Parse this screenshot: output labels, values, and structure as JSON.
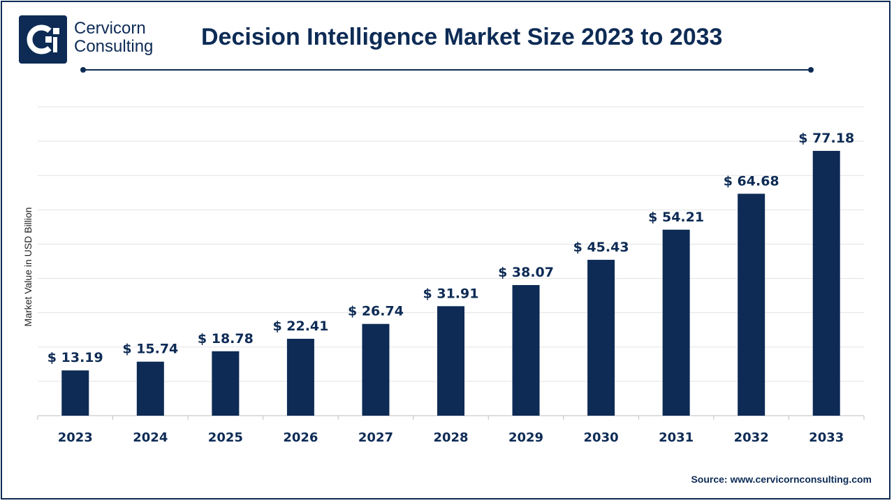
{
  "brand": {
    "line1": "Cervicorn",
    "line2": "Consulting",
    "color": "#0d2b55",
    "icon": "cervicorn-logo-icon"
  },
  "source": "Source: www.cervicornconsulting.com",
  "chart_data": {
    "type": "bar",
    "title": "Decision Intelligence Market Size 2023 to 2033",
    "xlabel": "",
    "ylabel": "Market Value in USD Billion",
    "categories": [
      "2023",
      "2024",
      "2025",
      "2026",
      "2027",
      "2028",
      "2029",
      "2030",
      "2031",
      "2032",
      "2033"
    ],
    "values": [
      13.19,
      15.74,
      18.78,
      22.41,
      26.74,
      31.91,
      38.07,
      45.43,
      54.21,
      64.68,
      77.18
    ],
    "value_labels": [
      "$ 13.19",
      "$ 15.74",
      "$ 18.78",
      "$ 22.41",
      "$ 26.74",
      "$ 31.91",
      "$ 38.07",
      "$ 45.43",
      "$ 54.21",
      "$ 64.68",
      "$ 77.18"
    ],
    "ylim": [
      0,
      90
    ],
    "grid": true,
    "bar_color": "#0d2b55"
  }
}
